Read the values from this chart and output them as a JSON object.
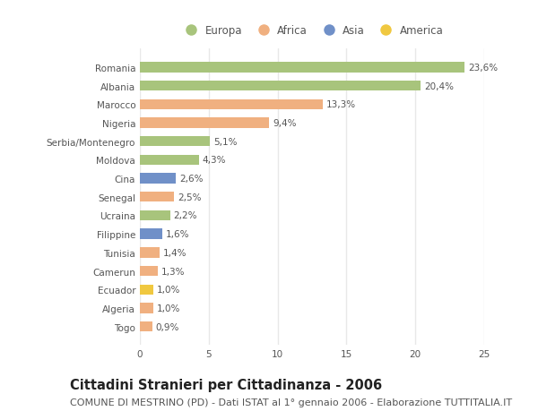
{
  "countries": [
    "Romania",
    "Albania",
    "Marocco",
    "Nigeria",
    "Serbia/Montenegro",
    "Moldova",
    "Cina",
    "Senegal",
    "Ucraina",
    "Filippine",
    "Tunisia",
    "Camerun",
    "Ecuador",
    "Algeria",
    "Togo"
  ],
  "values": [
    23.6,
    20.4,
    13.3,
    9.4,
    5.1,
    4.3,
    2.6,
    2.5,
    2.2,
    1.6,
    1.4,
    1.3,
    1.0,
    1.0,
    0.9
  ],
  "labels": [
    "23,6%",
    "20,4%",
    "13,3%",
    "9,4%",
    "5,1%",
    "4,3%",
    "2,6%",
    "2,5%",
    "2,2%",
    "1,6%",
    "1,4%",
    "1,3%",
    "1,0%",
    "1,0%",
    "0,9%"
  ],
  "continents": [
    "Europa",
    "Europa",
    "Africa",
    "Africa",
    "Europa",
    "Europa",
    "Asia",
    "Africa",
    "Europa",
    "Asia",
    "Africa",
    "Africa",
    "America",
    "Africa",
    "Africa"
  ],
  "colors": {
    "Europa": "#a8c47c",
    "Africa": "#f0b080",
    "Asia": "#7090c8",
    "America": "#f0c840"
  },
  "legend_order": [
    "Europa",
    "Africa",
    "Asia",
    "America"
  ],
  "xlim": [
    0,
    25
  ],
  "xticks": [
    0,
    5,
    10,
    15,
    20,
    25
  ],
  "title": "Cittadini Stranieri per Cittadinanza - 2006",
  "subtitle": "COMUNE DI MESTRINO (PD) - Dati ISTAT al 1° gennaio 2006 - Elaborazione TUTTITALIA.IT",
  "background_color": "#ffffff",
  "bar_height": 0.55,
  "title_fontsize": 10.5,
  "subtitle_fontsize": 8,
  "label_fontsize": 7.5,
  "tick_fontsize": 7.5,
  "legend_fontsize": 8.5,
  "grid_color": "#e8e8e8",
  "axes_bg": "#ffffff"
}
